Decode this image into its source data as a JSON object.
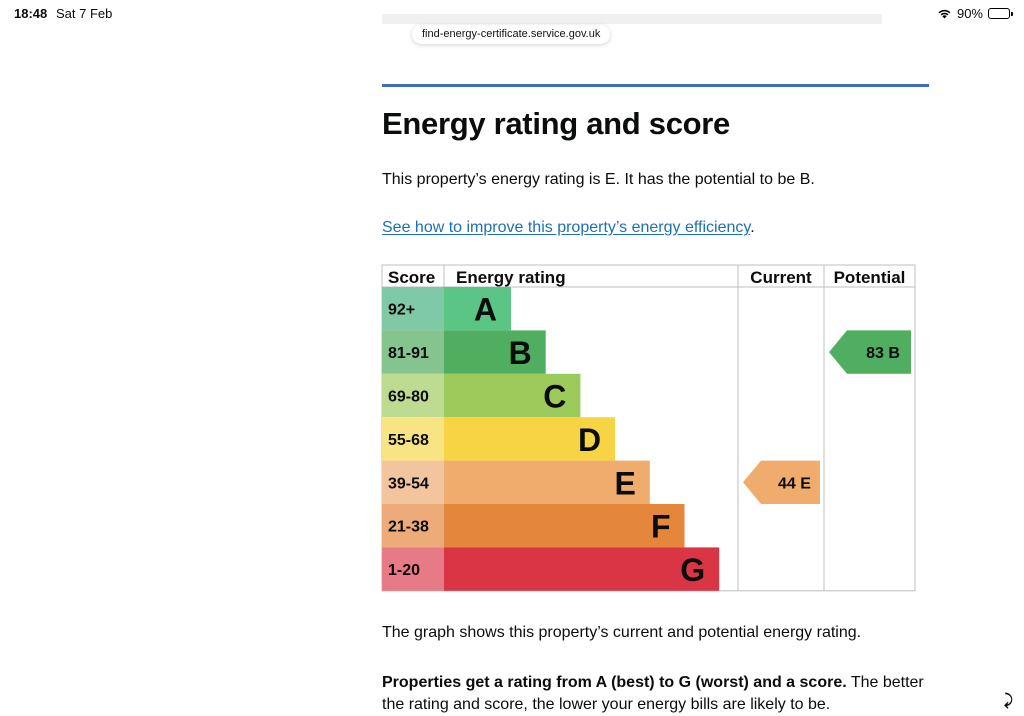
{
  "status_bar": {
    "time": "18:48",
    "date": "Sat 7 Feb",
    "battery": "90%",
    "battery_level": 0.9,
    "wifi_icon": "wifi-icon",
    "battery_icon": "battery-icon"
  },
  "browser": {
    "url": "find-energy-certificate.service.gov.uk"
  },
  "page": {
    "heading": "Energy rating and score",
    "rating_sentence": "This property’s energy rating is E. It has the potential to be B.",
    "improve_link": "See how to improve this property’s energy efficiency",
    "improve_link_suffix": ".",
    "graph_caption": "The graph shows this property’s current and potential energy rating.",
    "explanation_bold": "Properties get a rating from A (best) to G (worst) and a score.",
    "explanation_rest": " The better the rating and score, the lower your energy bills are likely to be."
  },
  "chart_data": {
    "type": "table",
    "columns": [
      "Score",
      "Energy rating",
      "Current",
      "Potential"
    ],
    "bands": [
      {
        "letter": "A",
        "score": "92+",
        "color": "#5bc586",
        "score_color": "#7fc9a7"
      },
      {
        "letter": "B",
        "score": "81-91",
        "color": "#4fae5f",
        "score_color": "#86c48f"
      },
      {
        "letter": "C",
        "score": "69-80",
        "color": "#9ccb5b",
        "score_color": "#bddc92"
      },
      {
        "letter": "D",
        "score": "55-68",
        "color": "#f6d444",
        "score_color": "#f9e483"
      },
      {
        "letter": "E",
        "score": "39-54",
        "color": "#efac6c",
        "score_color": "#f2c59f"
      },
      {
        "letter": "F",
        "score": "21-38",
        "color": "#e4863c",
        "score_color": "#ecab78"
      },
      {
        "letter": "G",
        "score": "1-20",
        "color": "#d93544",
        "score_color": "#e67a86"
      }
    ],
    "current": {
      "score": 44,
      "band": "E",
      "label": "44 E"
    },
    "potential": {
      "score": 83,
      "band": "B",
      "label": "83 B"
    }
  }
}
